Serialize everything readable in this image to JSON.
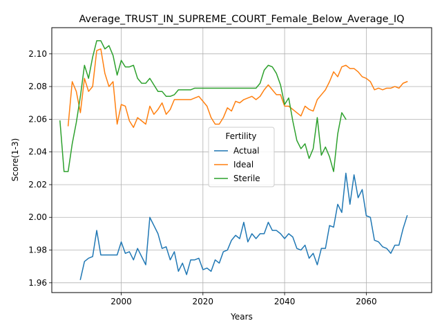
{
  "chart_data": {
    "type": "line",
    "title": "Average_TRUST_IN_SUPREME_COURT_Female_Below_Average_IQ",
    "xlabel": "Years",
    "ylabel": "Score(1-3)",
    "xlim": [
      1983,
      2076
    ],
    "ylim": [
      1.954,
      2.116
    ],
    "x_ticks": [
      2000,
      2020,
      2040,
      2060
    ],
    "y_ticks": [
      1.96,
      1.98,
      2.0,
      2.02,
      2.04,
      2.06,
      2.08,
      2.1
    ],
    "y_tick_labels": [
      "1.96",
      "1.98",
      "2.00",
      "2.02",
      "2.04",
      "2.06",
      "2.08",
      "2.10"
    ],
    "grid": true,
    "legend": {
      "title": "Fertility",
      "placement": "center"
    },
    "series": [
      {
        "name": "Actual",
        "color": "#1f77b4",
        "x": [
          1990,
          1991,
          1992,
          1993,
          1994,
          1995,
          1996,
          1997,
          1998,
          1999,
          2000,
          2001,
          2002,
          2003,
          2004,
          2005,
          2006,
          2007,
          2008,
          2009,
          2010,
          2011,
          2012,
          2013,
          2014,
          2015,
          2016,
          2017,
          2018,
          2019,
          2020,
          2021,
          2022,
          2023,
          2024,
          2025,
          2026,
          2027,
          2028,
          2029,
          2030,
          2031,
          2032,
          2033,
          2034,
          2035,
          2036,
          2037,
          2038,
          2039,
          2040,
          2041,
          2042,
          2043,
          2044,
          2045,
          2046,
          2047,
          2048,
          2049,
          2050,
          2051,
          2052,
          2053,
          2054,
          2055,
          2056,
          2057,
          2058,
          2059,
          2060,
          2061,
          2062,
          2063,
          2064,
          2065,
          2066,
          2067,
          2068,
          2069,
          2070
        ],
        "y": [
          1.962,
          1.973,
          1.975,
          1.976,
          1.992,
          1.977,
          1.977,
          1.977,
          1.977,
          1.977,
          1.985,
          1.978,
          1.979,
          1.974,
          1.981,
          1.976,
          1.971,
          2.0,
          1.995,
          1.99,
          1.981,
          1.982,
          1.974,
          1.979,
          1.967,
          1.972,
          1.965,
          1.974,
          1.974,
          1.975,
          1.968,
          1.969,
          1.967,
          1.974,
          1.972,
          1.979,
          1.98,
          1.986,
          1.989,
          1.987,
          1.997,
          1.985,
          1.99,
          1.987,
          1.99,
          1.99,
          1.997,
          1.992,
          1.992,
          1.99,
          1.987,
          1.99,
          1.988,
          1.981,
          1.98,
          1.983,
          1.975,
          1.978,
          1.971,
          1.981,
          1.981,
          1.995,
          1.994,
          2.008,
          2.003,
          2.027,
          2.008,
          2.026,
          2.012,
          2.017,
          2.001,
          2.0,
          1.986,
          1.985,
          1.982,
          1.981,
          1.978,
          1.983,
          1.983,
          1.993,
          2.001
        ]
      },
      {
        "name": "Ideal",
        "color": "#ff7f0e",
        "x": [
          1987,
          1988,
          1989,
          1990,
          1991,
          1992,
          1993,
          1994,
          1995,
          1996,
          1997,
          1998,
          1999,
          2000,
          2001,
          2002,
          2003,
          2004,
          2005,
          2006,
          2007,
          2008,
          2009,
          2010,
          2011,
          2012,
          2013,
          2014,
          2015,
          2016,
          2017,
          2018,
          2019,
          2020,
          2021,
          2022,
          2023,
          2024,
          2025,
          2026,
          2027,
          2028,
          2029,
          2030,
          2031,
          2032,
          2033,
          2034,
          2035,
          2036,
          2037,
          2038,
          2039,
          2040,
          2041,
          2042,
          2043,
          2044,
          2045,
          2046,
          2047,
          2048,
          2049,
          2050,
          2051,
          2052,
          2053,
          2054,
          2055,
          2056,
          2057,
          2058,
          2059,
          2060,
          2061,
          2062,
          2063,
          2064,
          2065,
          2066,
          2067,
          2068,
          2069,
          2070
        ],
        "y": [
          2.056,
          2.083,
          2.077,
          2.064,
          2.085,
          2.077,
          2.08,
          2.102,
          2.103,
          2.088,
          2.08,
          2.083,
          2.057,
          2.069,
          2.068,
          2.059,
          2.055,
          2.061,
          2.059,
          2.057,
          2.068,
          2.063,
          2.066,
          2.07,
          2.063,
          2.066,
          2.072,
          2.072,
          2.072,
          2.072,
          2.072,
          2.073,
          2.074,
          2.071,
          2.068,
          2.061,
          2.057,
          2.057,
          2.061,
          2.067,
          2.065,
          2.071,
          2.07,
          2.072,
          2.073,
          2.074,
          2.072,
          2.074,
          2.078,
          2.081,
          2.078,
          2.075,
          2.075,
          2.068,
          2.068,
          2.066,
          2.064,
          2.062,
          2.068,
          2.066,
          2.065,
          2.072,
          2.075,
          2.078,
          2.083,
          2.089,
          2.086,
          2.092,
          2.093,
          2.091,
          2.091,
          2.089,
          2.086,
          2.085,
          2.083,
          2.078,
          2.079,
          2.078,
          2.079,
          2.079,
          2.08,
          2.079,
          2.082,
          2.083
        ]
      },
      {
        "name": "Sterile",
        "color": "#2ca02c",
        "x": [
          1985,
          1986,
          1987,
          1988,
          1989,
          1990,
          1991,
          1992,
          1993,
          1994,
          1995,
          1996,
          1997,
          1998,
          1999,
          2000,
          2001,
          2002,
          2003,
          2004,
          2005,
          2006,
          2007,
          2008,
          2009,
          2010,
          2011,
          2012,
          2013,
          2014,
          2015,
          2016,
          2017,
          2018,
          2019,
          2020,
          2021,
          2022,
          2023,
          2024,
          2025,
          2026,
          2027,
          2028,
          2029,
          2030,
          2031,
          2032,
          2033,
          2034,
          2035,
          2036,
          2037,
          2038,
          2039,
          2040,
          2041,
          2042,
          2043,
          2044,
          2045,
          2046,
          2047,
          2048,
          2049,
          2050,
          2051,
          2052,
          2053,
          2054,
          2055
        ],
        "y": [
          2.059,
          2.028,
          2.028,
          2.045,
          2.058,
          2.074,
          2.093,
          2.085,
          2.098,
          2.108,
          2.108,
          2.103,
          2.105,
          2.099,
          2.087,
          2.096,
          2.092,
          2.092,
          2.093,
          2.085,
          2.082,
          2.082,
          2.085,
          2.081,
          2.077,
          2.077,
          2.074,
          2.074,
          2.075,
          2.078,
          2.078,
          2.078,
          2.078,
          2.079,
          2.079,
          2.079,
          2.079,
          2.079,
          2.079,
          2.079,
          2.079,
          2.079,
          2.079,
          2.079,
          2.079,
          2.079,
          2.079,
          2.079,
          2.079,
          2.082,
          2.09,
          2.093,
          2.092,
          2.088,
          2.081,
          2.069,
          2.073,
          2.059,
          2.047,
          2.042,
          2.045,
          2.036,
          2.042,
          2.061,
          2.038,
          2.043,
          2.037,
          2.028,
          2.051,
          2.064,
          2.06
        ]
      }
    ]
  }
}
